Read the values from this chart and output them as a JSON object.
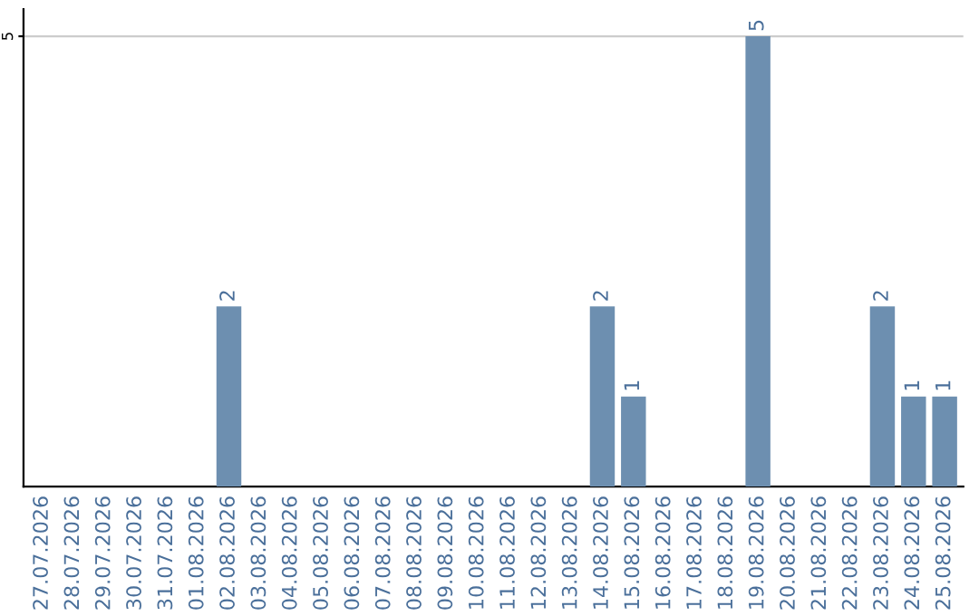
{
  "chart_data": {
    "type": "bar",
    "categories": [
      "27.07.2026",
      "28.07.2026",
      "29.07.2026",
      "30.07.2026",
      "31.07.2026",
      "01.08.2026",
      "02.08.2026",
      "03.08.2026",
      "04.08.2026",
      "05.08.2026",
      "06.08.2026",
      "07.08.2026",
      "08.08.2026",
      "09.08.2026",
      "10.08.2026",
      "11.08.2026",
      "12.08.2026",
      "13.08.2026",
      "14.08.2026",
      "15.08.2026",
      "16.08.2026",
      "17.08.2026",
      "18.08.2026",
      "19.08.2026",
      "20.08.2026",
      "21.08.2026",
      "22.08.2026",
      "23.08.2026",
      "24.08.2026",
      "25.08.2026"
    ],
    "values": [
      0,
      0,
      0,
      0,
      0,
      0,
      2,
      0,
      0,
      0,
      0,
      0,
      0,
      0,
      0,
      0,
      0,
      0,
      2,
      1,
      0,
      0,
      0,
      5,
      0,
      0,
      0,
      2,
      1,
      1
    ],
    "value_labels": [
      null,
      null,
      null,
      null,
      null,
      null,
      "2",
      null,
      null,
      null,
      null,
      null,
      null,
      null,
      null,
      null,
      null,
      null,
      "2",
      "1",
      null,
      null,
      null,
      "5",
      null,
      null,
      null,
      "2",
      "1",
      "1"
    ],
    "color": "#6d8fb0",
    "ylim": [
      0,
      5.3
    ],
    "yticks": [
      5
    ],
    "grid": "y"
  }
}
